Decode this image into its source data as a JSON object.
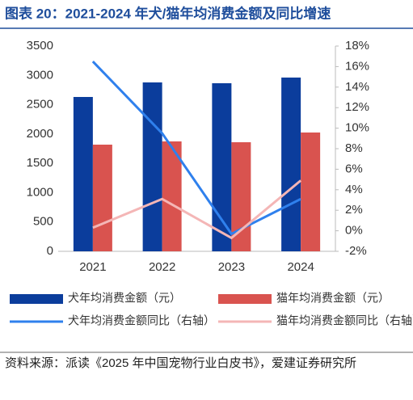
{
  "chart_data": {
    "type": "bar",
    "title": "图表 20：2021-2024 年犬/猫年均消费金额及同比增速",
    "categories": [
      "2021",
      "2022",
      "2023",
      "2024"
    ],
    "ylim": [
      0,
      3500
    ],
    "yticks": [
      0,
      500,
      1000,
      1500,
      2000,
      2500,
      3000,
      3500
    ],
    "y2lim": [
      -2,
      18
    ],
    "y2ticks": [
      {
        "value": -2,
        "label": "-2%"
      },
      {
        "value": 0,
        "label": "0%"
      },
      {
        "value": 2,
        "label": "2%"
      },
      {
        "value": 4,
        "label": "4%"
      },
      {
        "value": 6,
        "label": "6%"
      },
      {
        "value": 8,
        "label": "8%"
      },
      {
        "value": 10,
        "label": "10%"
      },
      {
        "value": 12,
        "label": "12%"
      },
      {
        "value": 14,
        "label": "14%"
      },
      {
        "value": 16,
        "label": "16%"
      },
      {
        "value": 18,
        "label": "18%"
      }
    ],
    "series": [
      {
        "name": "犬年均消费金额（元）",
        "type": "bar",
        "color": "#0b3d9c",
        "values": [
          2632,
          2880,
          2866,
          2963
        ]
      },
      {
        "name": "猫年均消费金额（元）",
        "type": "bar",
        "color": "#d9534f",
        "values": [
          1819,
          1874,
          1860,
          2026
        ]
      },
      {
        "name": "犬年均消费金额同比（右轴）",
        "type": "line",
        "axis": "y2",
        "color": "#2f80ed",
        "values": [
          16.5,
          9.5,
          -0.3,
          3.1
        ]
      },
      {
        "name": "猫年均消费金额同比（右轴）",
        "type": "line",
        "axis": "y2",
        "color": "#f4b6b6",
        "values": [
          0.3,
          3.1,
          -0.7,
          4.9
        ]
      }
    ],
    "source": "资料来源：派读《2025 年中国宠物行业白皮书》，爱建证券研究所"
  }
}
